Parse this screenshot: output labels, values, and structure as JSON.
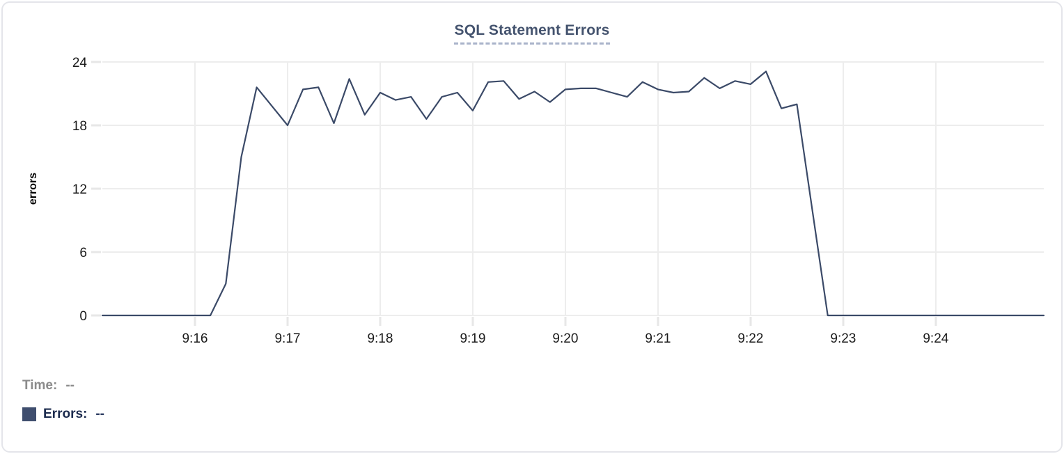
{
  "header": {
    "title": "SQL Statement Errors"
  },
  "chart_data": {
    "type": "line",
    "title": "SQL Statement Errors",
    "xlabel": "",
    "ylabel": "errors",
    "ylim": [
      0,
      24
    ],
    "yticks": [
      0,
      6,
      12,
      18,
      24
    ],
    "x_domain_seconds": [
      0,
      610
    ],
    "x_ticks": [
      {
        "seconds": 60,
        "label": "9:16"
      },
      {
        "seconds": 120,
        "label": "9:17"
      },
      {
        "seconds": 180,
        "label": "9:18"
      },
      {
        "seconds": 240,
        "label": "9:19"
      },
      {
        "seconds": 300,
        "label": "9:20"
      },
      {
        "seconds": 360,
        "label": "9:21"
      },
      {
        "seconds": 420,
        "label": "9:22"
      },
      {
        "seconds": 480,
        "label": "9:23"
      },
      {
        "seconds": 540,
        "label": "9:24"
      }
    ],
    "grid": true,
    "grid_color": "#ededed",
    "tick_color": "#e7e7e7",
    "text_color": "#1a1a1a",
    "series": [
      {
        "name": "Errors",
        "color": "#3b4a68",
        "start_time": "9:15:00",
        "interval_seconds": 10,
        "values": [
          0,
          0,
          0,
          0,
          0,
          0,
          0,
          0,
          3,
          15,
          21.6,
          19.8,
          18,
          21.4,
          21.6,
          18.2,
          22.4,
          19,
          21.1,
          20.4,
          20.7,
          18.6,
          20.7,
          21.1,
          19.4,
          22.1,
          22.2,
          20.5,
          21.2,
          20.2,
          21.4,
          21.5,
          21.5,
          21.1,
          20.7,
          22.1,
          21.4,
          21.1,
          21.2,
          22.5,
          21.5,
          22.2,
          21.9,
          23.1,
          19.6,
          20,
          10,
          0,
          0,
          0,
          0,
          0,
          0,
          0,
          0,
          0,
          0,
          0,
          0,
          0,
          0,
          0
        ]
      }
    ],
    "legend_position": "bottom-left"
  },
  "legend": {
    "time_label": "Time:",
    "time_value": "--",
    "errors_label": "Errors:",
    "errors_value": "--",
    "swatch_color": "#3f4e6e"
  },
  "colors": {
    "accent_line": "#3b4a68",
    "title_text": "#44536e",
    "title_underline": "#a9b3ca",
    "muted_text": "#8b8b8b",
    "dark_navy_text": "#1c2b4e",
    "card_border": "#e4e5ea"
  }
}
